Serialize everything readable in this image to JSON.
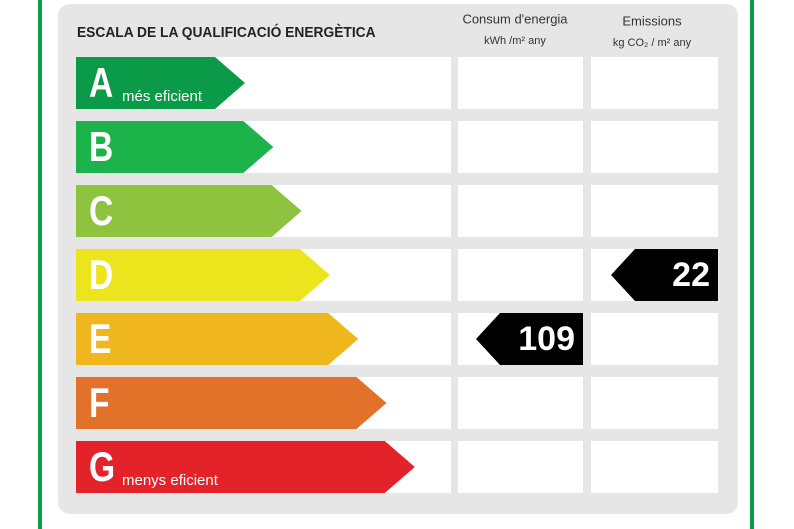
{
  "title": "ESCALA DE LA QUALIFICACIÓ ENERGÈTICA",
  "columns": [
    {
      "title": "Consum d'energia",
      "unit": "kWh /m² any"
    },
    {
      "title": "Emissions",
      "unit": "kg CO₂ / m² any"
    }
  ],
  "ratings": [
    {
      "letter": "A",
      "note": "més eficient",
      "color": "#0a9a48"
    },
    {
      "letter": "B",
      "color": "#1db34b"
    },
    {
      "letter": "C",
      "color": "#8dc33f"
    },
    {
      "letter": "D",
      "color": "#ece51e",
      "emissions": 22
    },
    {
      "letter": "E",
      "color": "#efb61e",
      "consumption": 109
    },
    {
      "letter": "F",
      "color": "#e2712a"
    },
    {
      "letter": "G",
      "note": "menys eficient",
      "color": "#e3222a"
    }
  ]
}
